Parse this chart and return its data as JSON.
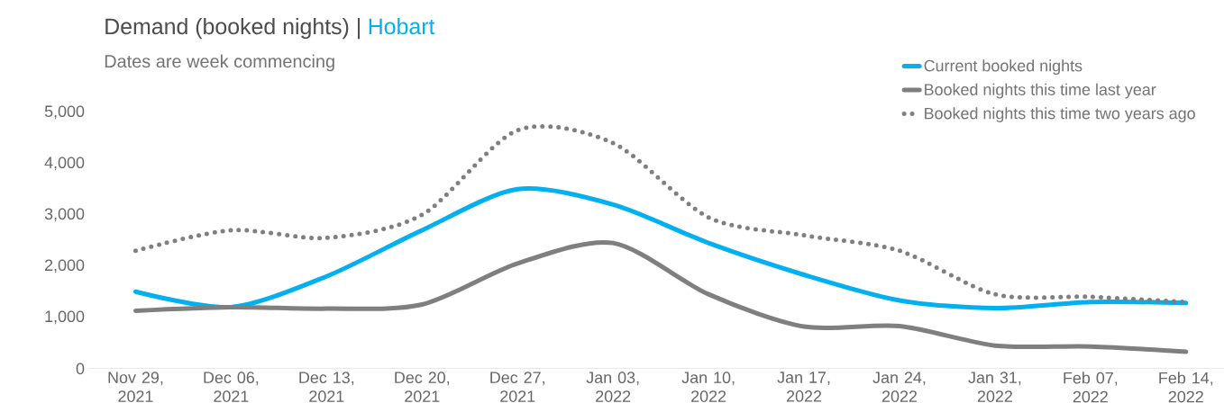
{
  "chart_data": {
    "type": "line",
    "title": "Demand (booked nights) |",
    "subtitle": "Dates are week commencing",
    "annotations": [
      "Hobart"
    ],
    "categories": [
      "Nov 29, 2021",
      "Dec 06, 2021",
      "Dec 13, 2021",
      "Dec 20, 2021",
      "Dec 27, 2021",
      "Jan 03, 2022",
      "Jan 10, 2022",
      "Jan 17, 2022",
      "Jan 24, 2022",
      "Jan 31, 2022",
      "Feb 07, 2022",
      "Feb 14, 2022"
    ],
    "series": [
      {
        "name": "Current booked nights",
        "color": "#00b0f0",
        "line_style": "solid",
        "values": [
          1500,
          1200,
          1800,
          2700,
          3500,
          3200,
          2450,
          1830,
          1330,
          1180,
          1300,
          1280
        ]
      },
      {
        "name": "Booked nights this time last year",
        "color": "#7f7f7f",
        "line_style": "solid",
        "values": [
          1130,
          1200,
          1170,
          1250,
          2050,
          2450,
          1450,
          820,
          830,
          450,
          430,
          330
        ]
      },
      {
        "name": "Booked nights this time two years ago",
        "color": "#7f7f7f",
        "line_style": "dotted",
        "values": [
          2300,
          2700,
          2550,
          3000,
          4650,
          4400,
          2950,
          2600,
          2300,
          1450,
          1400,
          1300
        ]
      }
    ],
    "ylim": [
      0,
      5000
    ],
    "yticks": [
      {
        "value": 0,
        "label": "0"
      },
      {
        "value": 1000,
        "label": "1,000"
      },
      {
        "value": 2000,
        "label": "2,000"
      },
      {
        "value": 3000,
        "label": "3,000"
      },
      {
        "value": 4000,
        "label": "4,000"
      },
      {
        "value": 5000,
        "label": "5,000"
      }
    ],
    "grid": false,
    "legend": "top right",
    "marker": "none"
  }
}
